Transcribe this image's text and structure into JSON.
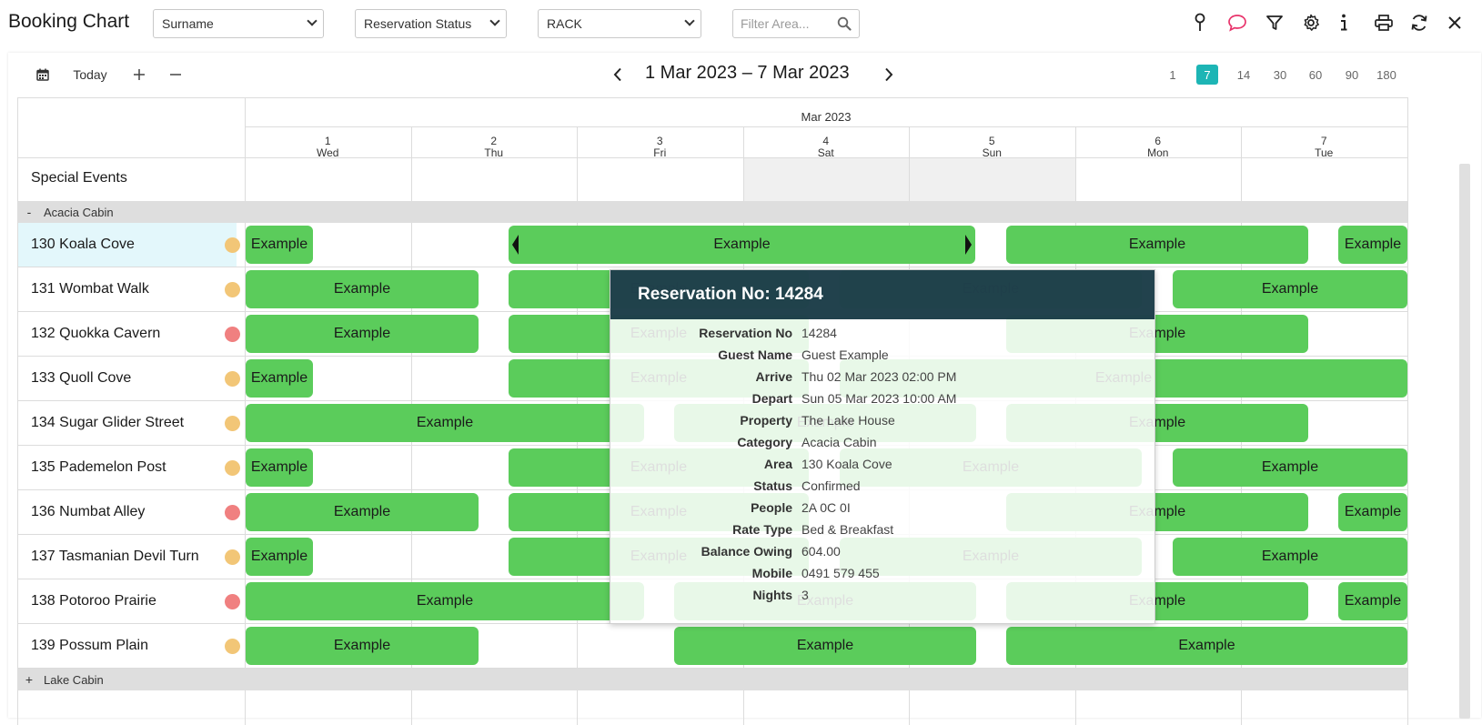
{
  "app": {
    "title": "Booking Chart"
  },
  "toolbar": {
    "sort_select": "Surname",
    "status_select": "Reservation Status",
    "rate_select": "RACK",
    "filter_placeholder": "Filter Area...",
    "icons": [
      "pin-icon",
      "chat-icon",
      "filter-icon",
      "gear-icon",
      "info-icon",
      "print-icon",
      "refresh-icon",
      "close-icon"
    ],
    "accent_color": "#e8336b"
  },
  "nav": {
    "today_label": "Today",
    "range_title": "1 Mar 2023 – 7 Mar 2023",
    "spans": [
      "1",
      "7",
      "14",
      "30",
      "60",
      "90",
      "180"
    ],
    "active_span": "7",
    "active_color": "#1db5b5"
  },
  "chart": {
    "month": "Mar 2023",
    "days": [
      {
        "num": "1",
        "dow": "Wed"
      },
      {
        "num": "2",
        "dow": "Thu"
      },
      {
        "num": "3",
        "dow": "Fri"
      },
      {
        "num": "4",
        "dow": "Sat"
      },
      {
        "num": "5",
        "dow": "Sun"
      },
      {
        "num": "6",
        "dow": "Mon"
      },
      {
        "num": "7",
        "dow": "Tue"
      }
    ],
    "special_events_label": "Special Events",
    "categories": [
      {
        "toggle": "-",
        "name": "Acacia Cabin"
      },
      {
        "toggle": "+",
        "name": "Lake Cabin"
      }
    ],
    "rooms": [
      {
        "name": "130 Koala Cove",
        "status": "amber"
      },
      {
        "name": "131 Wombat Walk",
        "status": "amber"
      },
      {
        "name": "132 Quokka Cavern",
        "status": "red"
      },
      {
        "name": "133 Quoll Cove",
        "status": "amber"
      },
      {
        "name": "134 Sugar Glider Street",
        "status": "amber"
      },
      {
        "name": "135 Pademelon Post",
        "status": "amber"
      },
      {
        "name": "136 Numbat Alley",
        "status": "red"
      },
      {
        "name": "137 Tasmanian Devil Turn",
        "status": "amber"
      },
      {
        "name": "138 Potoroo Prairie",
        "status": "red"
      },
      {
        "name": "139 Possum Plain",
        "status": "amber"
      }
    ],
    "booking_label": "Example",
    "booking_color": "#5bcc5b",
    "status_colors": {
      "amber": "#f2c677",
      "red": "#f08080"
    }
  },
  "popup": {
    "title": "Reservation No: 14284",
    "fields": [
      {
        "label": "Reservation No",
        "value": "14284"
      },
      {
        "label": "Guest Name",
        "value": "Guest Example"
      },
      {
        "label": "Arrive",
        "value": "Thu 02 Mar 2023 02:00 PM"
      },
      {
        "label": "Depart",
        "value": "Sun 05 Mar 2023 10:00 AM"
      },
      {
        "label": "Property",
        "value": "The Lake House"
      },
      {
        "label": "Category",
        "value": "Acacia Cabin"
      },
      {
        "label": "Area",
        "value": "130 Koala Cove"
      },
      {
        "label": "Status",
        "value": "Confirmed"
      },
      {
        "label": "People",
        "value": "2A 0C 0I"
      },
      {
        "label": "Rate Type",
        "value": "Bed & Breakfast"
      },
      {
        "label": "Balance Owing",
        "value": "604.00"
      },
      {
        "label": "Mobile",
        "value": "0491 579 455"
      },
      {
        "label": "Nights",
        "value": "3"
      }
    ]
  }
}
